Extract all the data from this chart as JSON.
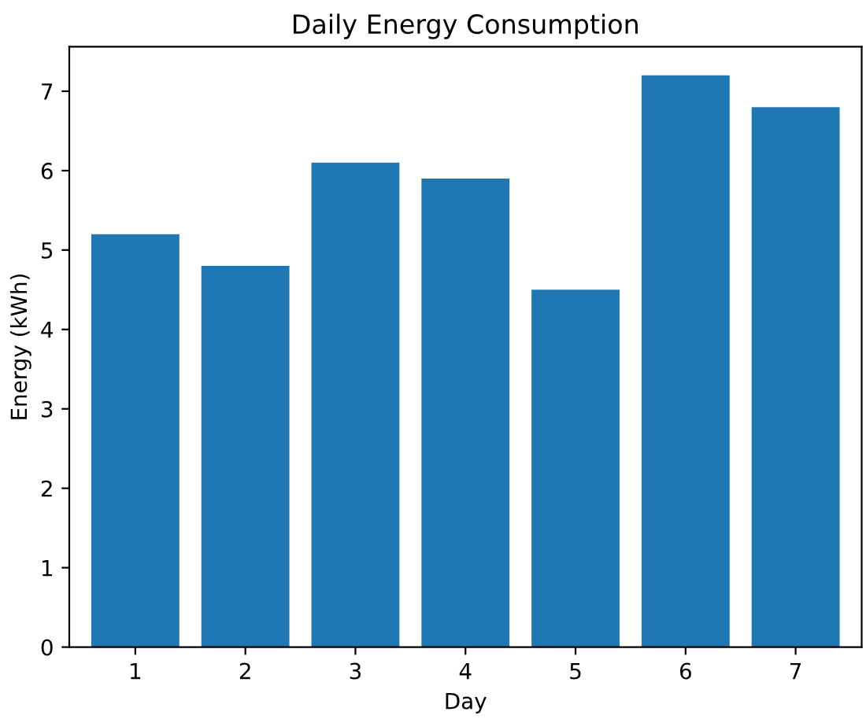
{
  "chart_data": {
    "type": "bar",
    "title": "Daily Energy Consumption",
    "xlabel": "Day",
    "ylabel": "Energy (kWh)",
    "x": [
      1,
      2,
      3,
      4,
      5,
      6,
      7
    ],
    "values": [
      5.2,
      4.8,
      6.1,
      5.9,
      4.5,
      7.2,
      6.8
    ],
    "color": "#1f77b4",
    "xlim": [
      0.4,
      7.6
    ],
    "xticks": [
      1,
      2,
      3,
      4,
      5,
      6,
      7
    ],
    "ylim": [
      0,
      7.56
    ],
    "yticks": [
      0,
      1,
      2,
      3,
      4,
      5,
      6,
      7
    ],
    "grid": false
  }
}
